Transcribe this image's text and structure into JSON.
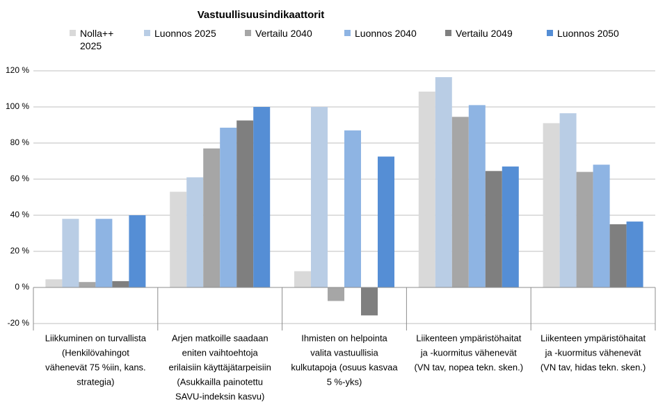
{
  "chart_data": {
    "type": "bar",
    "title": "Vastuullisuusindikaattorit",
    "categories": [
      [
        "Liikkuminen on turvallista",
        "(Henkilövahingot",
        "vähenevät 75 %iin, kans.",
        "strategia)"
      ],
      [
        "Arjen matkoille saadaan",
        "eniten vaihtoehtoja",
        "erilaisiin käyttäjätarpeisiin",
        "(Asukkailla painotettu",
        "SAVU-indeksin kasvu)"
      ],
      [
        "Ihmisten on helpointa",
        "valita vastuullisia",
        "kulkutapoja (osuus kasvaa",
        "5 %-yks)"
      ],
      [
        "Liikenteen ympäristöhaitat",
        "ja -kuormitus vähenevät",
        "(VN tav, nopea tekn. sken.)"
      ],
      [
        "Liikenteen ympäristöhaitat",
        "ja -kuormitus vähenevät",
        "(VN tav, hidas tekn. sken.)"
      ]
    ],
    "series": [
      {
        "name": "Nolla++ 2025",
        "color": "#d9d9d9",
        "values": [
          4.5,
          53,
          9,
          108.5,
          91
        ]
      },
      {
        "name": "Luonnos 2025",
        "color": "#b9cde5",
        "values": [
          38,
          61,
          100,
          116.5,
          96.5
        ]
      },
      {
        "name": "Vertailu 2040",
        "color": "#a6a6a6",
        "values": [
          3,
          77,
          -7.5,
          94.5,
          64
        ]
      },
      {
        "name": "Luonnos 2040",
        "color": "#8eb4e3",
        "values": [
          38,
          88.5,
          87,
          101,
          68
        ]
      },
      {
        "name": "Vertailu 2049",
        "color": "#7f7f7f",
        "values": [
          3.5,
          92.5,
          -15.5,
          64.5,
          35
        ]
      },
      {
        "name": "Luonnos 2050",
        "color": "#558ed5",
        "values": [
          40,
          100,
          72.5,
          67,
          36.5
        ]
      }
    ],
    "ylim": [
      -20,
      120
    ],
    "yticks": [
      {
        "value": -20,
        "label": "-20 %"
      },
      {
        "value": 0,
        "label": "0 %"
      },
      {
        "value": 20,
        "label": "20 %"
      },
      {
        "value": 40,
        "label": "40 %"
      },
      {
        "value": 60,
        "label": "60 %"
      },
      {
        "value": 80,
        "label": "80 %"
      },
      {
        "value": 100,
        "label": "100 %"
      },
      {
        "value": 120,
        "label": "120 %"
      }
    ],
    "grid": true
  }
}
